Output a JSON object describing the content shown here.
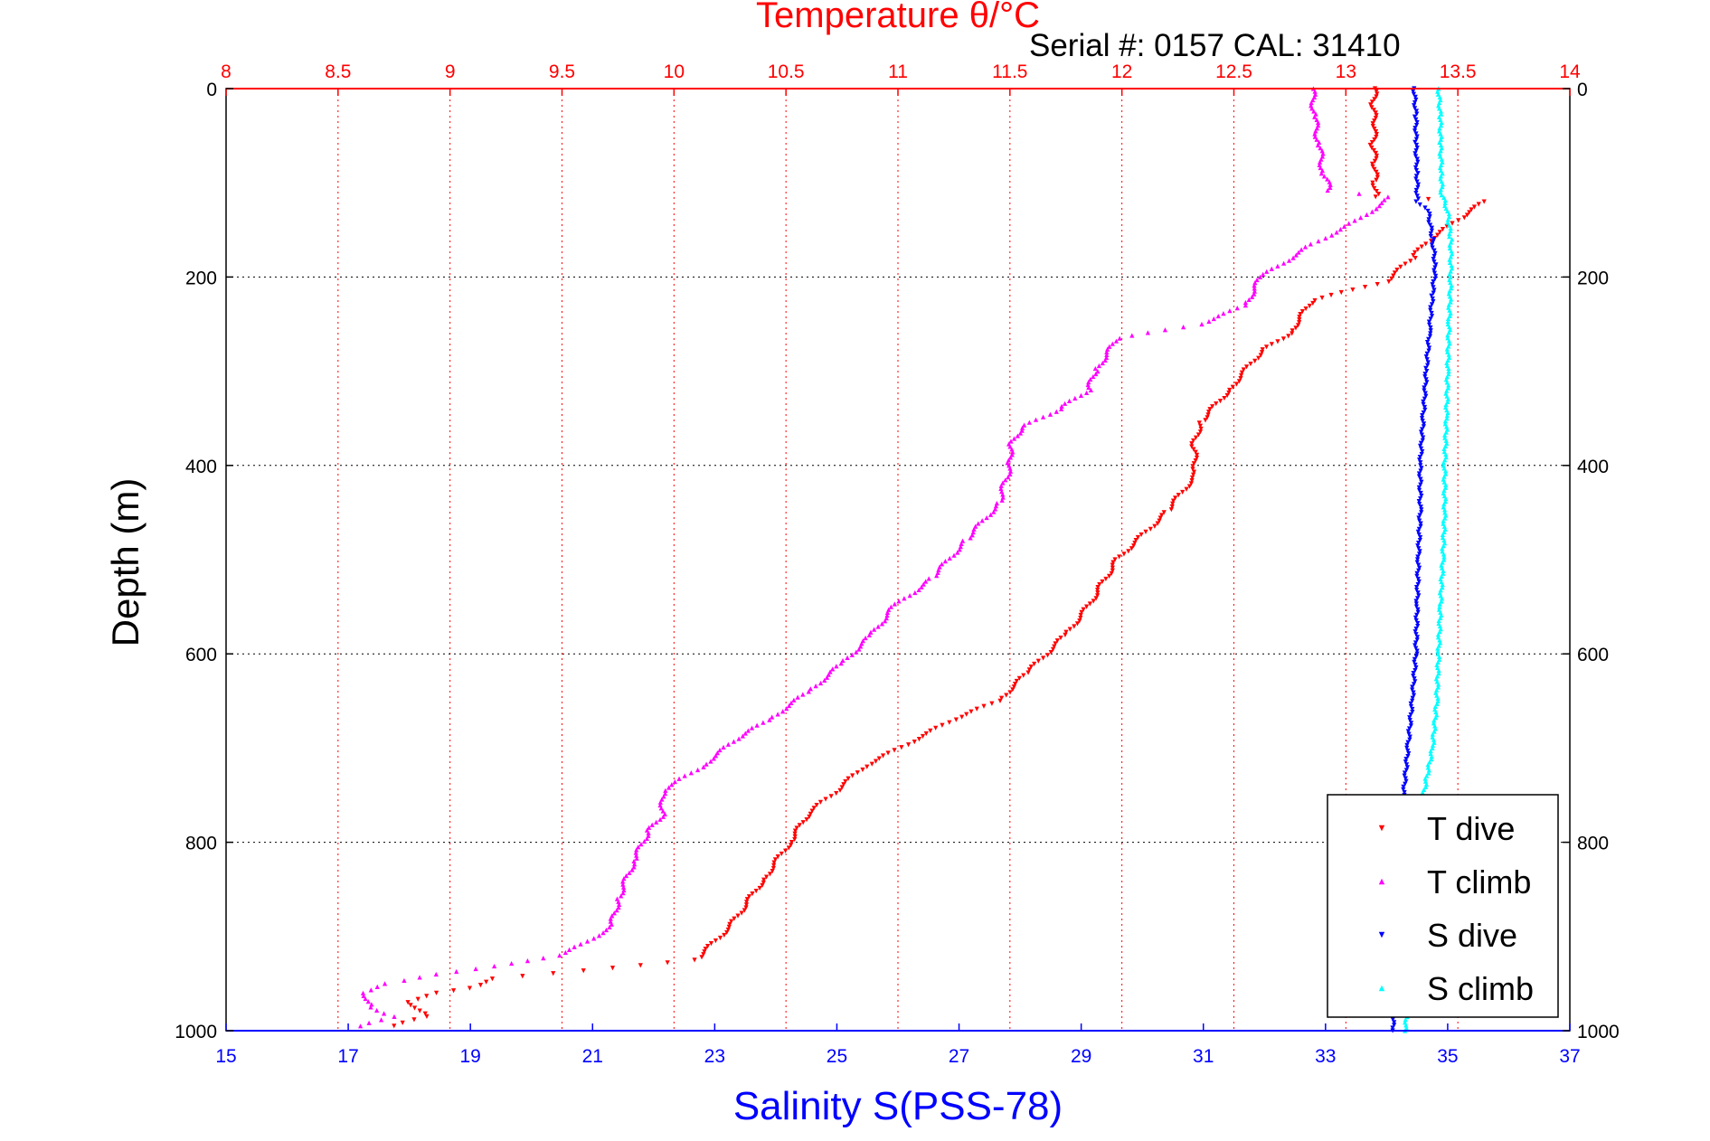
{
  "chart_data": {
    "type": "scatter",
    "title": "Temperature θ/°C",
    "subtitle": "Serial #: 0157  CAL: 31410",
    "xlabel": "Salinity S(PSS-78)",
    "ylabel": "Depth (m)",
    "x_top_label": "Temperature θ/°C",
    "xlim": [
      15,
      37
    ],
    "x_top_lim": [
      8,
      14
    ],
    "ylim": [
      0,
      1000
    ],
    "y_reversed": true,
    "grid": true,
    "x_ticks": [
      15,
      17,
      19,
      21,
      23,
      25,
      27,
      29,
      31,
      33,
      35,
      37
    ],
    "x_top_ticks": [
      "8",
      "8.5",
      "9",
      "9.5",
      "10",
      "10.5",
      "11",
      "11.5",
      "12",
      "12.5",
      "13",
      "13.5",
      "14"
    ],
    "y_ticks": [
      0,
      200,
      400,
      600,
      800,
      1000
    ],
    "legend_position": "bottom-right",
    "colors": {
      "temperature_axis": "#ff0000",
      "salinity_axis": "#0000ff",
      "grid_temp": "#ff0000",
      "grid_depth": "#000000"
    },
    "series": [
      {
        "name": "T dive",
        "axis": "temperature",
        "color": "#ff0000",
        "marker": "triangle-down",
        "points": [
          [
            13.13,
            0
          ],
          [
            13.12,
            20
          ],
          [
            13.13,
            40
          ],
          [
            13.12,
            60
          ],
          [
            13.13,
            80
          ],
          [
            13.13,
            100
          ],
          [
            13.14,
            115
          ],
          [
            13.62,
            120
          ],
          [
            13.5,
            140
          ],
          [
            13.35,
            165
          ],
          [
            13.3,
            180
          ],
          [
            13.18,
            205
          ],
          [
            12.85,
            225
          ],
          [
            12.75,
            260
          ],
          [
            12.62,
            280
          ],
          [
            12.48,
            320
          ],
          [
            12.35,
            355
          ],
          [
            12.32,
            380
          ],
          [
            12.33,
            410
          ],
          [
            12.2,
            450
          ],
          [
            11.98,
            500
          ],
          [
            11.85,
            550
          ],
          [
            11.75,
            580
          ],
          [
            11.58,
            620
          ],
          [
            11.45,
            650
          ],
          [
            11.25,
            670
          ],
          [
            10.85,
            720
          ],
          [
            10.73,
            745
          ],
          [
            10.6,
            770
          ],
          [
            10.52,
            800
          ],
          [
            10.4,
            840
          ],
          [
            10.25,
            890
          ],
          [
            10.1,
            925
          ],
          [
            9.2,
            945
          ],
          [
            9.1,
            955
          ],
          [
            8.95,
            960
          ],
          [
            8.82,
            970
          ],
          [
            8.9,
            985
          ],
          [
            8.75,
            995
          ]
        ]
      },
      {
        "name": "T climb",
        "axis": "temperature",
        "color": "#ff00ff",
        "marker": "triangle-up",
        "points": [
          [
            12.85,
            0
          ],
          [
            12.86,
            30
          ],
          [
            12.88,
            60
          ],
          [
            12.9,
            90
          ],
          [
            12.93,
            108
          ],
          [
            13.2,
            115
          ],
          [
            13.05,
            140
          ],
          [
            12.85,
            165
          ],
          [
            12.62,
            200
          ],
          [
            12.55,
            230
          ],
          [
            12.35,
            250
          ],
          [
            11.98,
            265
          ],
          [
            11.88,
            300
          ],
          [
            11.85,
            320
          ],
          [
            11.72,
            340
          ],
          [
            11.55,
            360
          ],
          [
            11.5,
            380
          ],
          [
            11.5,
            400
          ],
          [
            11.45,
            440
          ],
          [
            11.3,
            480
          ],
          [
            11.15,
            520
          ],
          [
            10.98,
            550
          ],
          [
            10.88,
            580
          ],
          [
            10.75,
            610
          ],
          [
            10.6,
            640
          ],
          [
            10.42,
            670
          ],
          [
            10.28,
            690
          ],
          [
            10.12,
            720
          ],
          [
            9.95,
            745
          ],
          [
            9.95,
            770
          ],
          [
            9.88,
            790
          ],
          [
            9.82,
            820
          ],
          [
            9.75,
            860
          ],
          [
            9.72,
            890
          ],
          [
            9.5,
            920
          ],
          [
            8.95,
            940
          ],
          [
            8.72,
            950
          ],
          [
            8.62,
            960
          ],
          [
            8.65,
            975
          ],
          [
            8.75,
            985
          ],
          [
            8.6,
            995
          ]
        ]
      },
      {
        "name": "S dive",
        "axis": "salinity",
        "color": "#0000ff",
        "marker": "triangle-down",
        "points": [
          [
            34.45,
            0
          ],
          [
            34.48,
            30
          ],
          [
            34.48,
            60
          ],
          [
            34.5,
            90
          ],
          [
            34.5,
            120
          ],
          [
            34.68,
            130
          ],
          [
            34.75,
            160
          ],
          [
            34.8,
            190
          ],
          [
            34.75,
            220
          ],
          [
            34.7,
            260
          ],
          [
            34.65,
            300
          ],
          [
            34.6,
            350
          ],
          [
            34.55,
            400
          ],
          [
            34.55,
            450
          ],
          [
            34.52,
            500
          ],
          [
            34.5,
            550
          ],
          [
            34.48,
            600
          ],
          [
            34.42,
            650
          ],
          [
            34.35,
            700
          ],
          [
            34.28,
            750
          ],
          [
            34.25,
            800
          ],
          [
            34.2,
            850
          ],
          [
            34.18,
            900
          ],
          [
            34.15,
            950
          ],
          [
            34.1,
            1000
          ]
        ]
      },
      {
        "name": "S climb",
        "axis": "salinity",
        "color": "#00ffff",
        "marker": "triangle-up",
        "points": [
          [
            34.85,
            0
          ],
          [
            34.88,
            30
          ],
          [
            34.88,
            60
          ],
          [
            34.9,
            90
          ],
          [
            34.9,
            110
          ],
          [
            35.0,
            130
          ],
          [
            35.05,
            160
          ],
          [
            35.05,
            200
          ],
          [
            35.02,
            250
          ],
          [
            35.0,
            300
          ],
          [
            34.98,
            350
          ],
          [
            34.95,
            400
          ],
          [
            34.95,
            450
          ],
          [
            34.92,
            500
          ],
          [
            34.88,
            550
          ],
          [
            34.85,
            600
          ],
          [
            34.82,
            650
          ],
          [
            34.75,
            700
          ],
          [
            34.6,
            750
          ],
          [
            34.55,
            800
          ],
          [
            34.5,
            850
          ],
          [
            34.45,
            900
          ],
          [
            34.4,
            950
          ],
          [
            34.3,
            1000
          ]
        ]
      }
    ]
  }
}
